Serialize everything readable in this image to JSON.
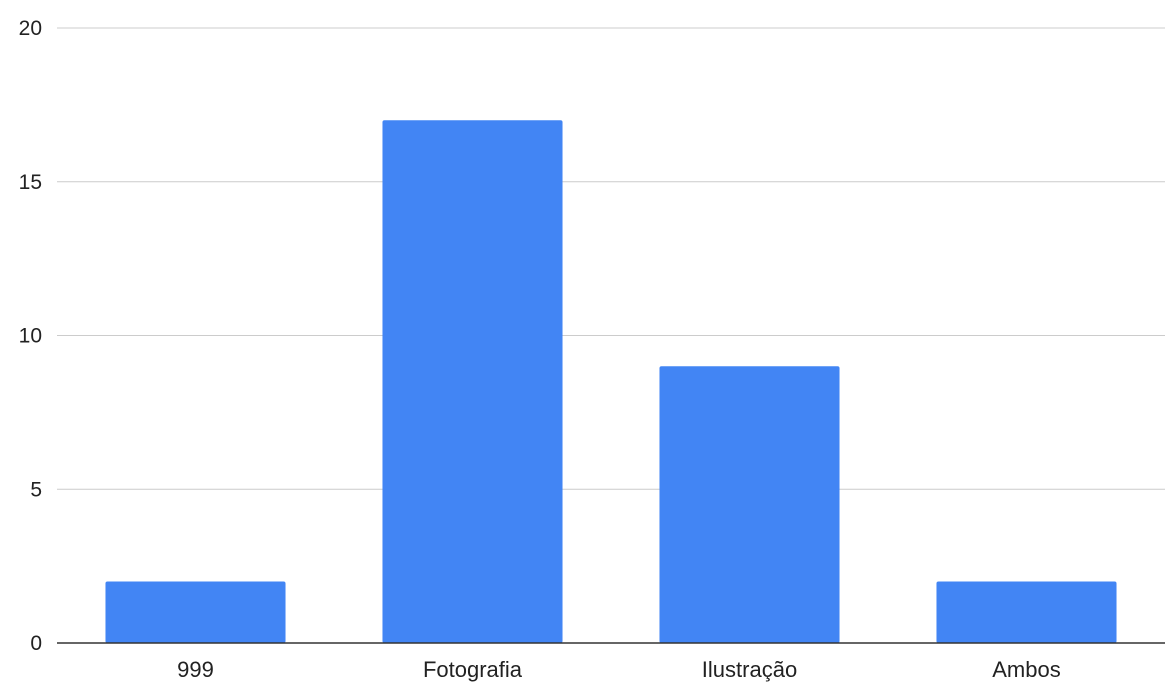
{
  "chart_data": {
    "type": "bar",
    "title": "",
    "xlabel": "",
    "ylabel": "",
    "categories": [
      "999",
      "Fotografia",
      "Ilustração",
      "Ambos"
    ],
    "values": [
      2,
      17,
      9,
      2
    ],
    "ylim": [
      0,
      20
    ],
    "yticks": [
      "0",
      "5",
      "10",
      "15",
      "20"
    ],
    "grid": true,
    "legend": "none",
    "colors": {
      "bar": "#4285f4",
      "grid": "#cccccc",
      "axis": "#333333"
    }
  }
}
